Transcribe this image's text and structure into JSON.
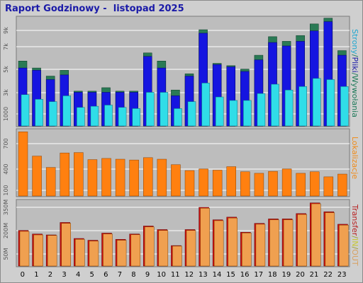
{
  "title": "Raport Godzinowy -  listopad 2025",
  "legend": {
    "top": [
      {
        "text": "Strony",
        "color": "#1fa7d0"
      },
      {
        "text": "/",
        "color": "#1e7a5a"
      },
      {
        "text": "Pliki",
        "color": "#1a1aa8"
      },
      {
        "text": "/",
        "color": "#1e7a5a"
      },
      {
        "text": "Wywołania",
        "color": "#1e7a5a"
      }
    ],
    "middle": [
      {
        "text": "Lokalizacje",
        "color": "#f08a18"
      }
    ],
    "bottom": [
      {
        "text": "Transfer",
        "color": "#b82020"
      },
      {
        "text": "/",
        "color": "#a0a030"
      },
      {
        "text": "IN",
        "color": "#c8c830"
      },
      {
        "text": "/",
        "color": "#a0a030"
      },
      {
        "text": "OUT",
        "color": "#d8a060"
      }
    ]
  },
  "chart_data": [
    {
      "type": "bar",
      "categories": [
        "0",
        "1",
        "2",
        "3",
        "4",
        "5",
        "6",
        "7",
        "8",
        "9",
        "10",
        "11",
        "12",
        "13",
        "14",
        "15",
        "16",
        "17",
        "18",
        "19",
        "20",
        "21",
        "22",
        "23"
      ],
      "y_ticks": [
        "9k",
        "7k",
        "5k",
        "3k",
        "1000"
      ],
      "ylim": [
        0,
        9400
      ],
      "series": [
        {
          "name": "Wywołania",
          "color": "#2a7a55",
          "values": [
            5600,
            5000,
            4300,
            4800,
            3000,
            3000,
            3300,
            3000,
            3000,
            6300,
            5600,
            3100,
            4500,
            8300,
            5400,
            5200,
            4900,
            6100,
            7700,
            7300,
            7800,
            8800,
            9300,
            6500
          ]
        },
        {
          "name": "Pliki",
          "color": "#1515e0",
          "values": [
            5000,
            4800,
            4000,
            4400,
            2900,
            2900,
            2900,
            2900,
            2900,
            6000,
            5000,
            2600,
            4300,
            8000,
            5300,
            5100,
            4700,
            5700,
            7200,
            6900,
            7300,
            8200,
            9000,
            6100
          ]
        },
        {
          "name": "Strony",
          "color": "#30dde8",
          "values": [
            2700,
            2300,
            2100,
            2600,
            1600,
            1700,
            1800,
            1600,
            1500,
            2900,
            2900,
            1500,
            2100,
            3700,
            2500,
            2200,
            2200,
            2800,
            3600,
            3100,
            3400,
            4100,
            4000,
            3400
          ]
        }
      ]
    },
    {
      "type": "bar",
      "categories": [
        "0",
        "1",
        "2",
        "3",
        "4",
        "5",
        "6",
        "7",
        "8",
        "9",
        "10",
        "11",
        "12",
        "13",
        "14",
        "15",
        "16",
        "17",
        "18",
        "19",
        "20",
        "21",
        "22",
        "23"
      ],
      "y_ticks": [
        "700",
        "400",
        "100"
      ],
      "ylim": [
        0,
        850
      ],
      "series": [
        {
          "name": "Lokalizacje",
          "color": "#ff8010",
          "values": [
            820,
            510,
            365,
            550,
            555,
            465,
            480,
            470,
            460,
            490,
            470,
            400,
            325,
            345,
            330,
            375,
            310,
            290,
            315,
            345,
            290,
            310,
            245,
            280
          ]
        }
      ]
    },
    {
      "type": "bar",
      "categories": [
        "0",
        "1",
        "2",
        "3",
        "4",
        "5",
        "6",
        "7",
        "8",
        "9",
        "10",
        "11",
        "12",
        "13",
        "14",
        "15",
        "16",
        "17",
        "18",
        "19",
        "20",
        "21",
        "22",
        "23"
      ],
      "y_ticks": [
        "350M",
        "200M",
        "50M"
      ],
      "ylim": [
        0,
        370
      ],
      "series": [
        {
          "name": "Transfer",
          "color": "#cc1010",
          "values": [
            200,
            180,
            175,
            245,
            155,
            145,
            185,
            150,
            180,
            225,
            205,
            115,
            205,
            330,
            260,
            275,
            190,
            240,
            265,
            265,
            295,
            355,
            305,
            235
          ]
        },
        {
          "name": "OUT",
          "color": "#f0a050",
          "values": [
            195,
            175,
            172,
            240,
            150,
            140,
            180,
            145,
            176,
            220,
            200,
            112,
            200,
            325,
            255,
            270,
            186,
            235,
            260,
            260,
            290,
            350,
            300,
            230
          ]
        }
      ]
    }
  ]
}
